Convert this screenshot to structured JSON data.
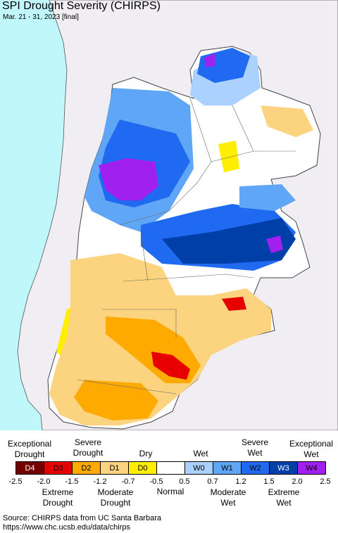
{
  "title": "SPI Drought Severity (CHIRPS)",
  "subtitle": "Mar. 21 - 31, 2023 [final]",
  "colors": {
    "ocean": "#bff7fb",
    "neighbor": "#f0eef2",
    "border": "#555555",
    "normal": "#ffffff",
    "D0": "#ffee00",
    "D1": "#fcd37f",
    "D2": "#ffaa00",
    "D3": "#e60000",
    "D4": "#730000",
    "W0": "#aad1ff",
    "W1": "#5fa6f6",
    "W2": "#1f6af0",
    "W3": "#003ea8",
    "W4": "#a020f0"
  },
  "legend": {
    "top_labels": {
      "exceptional_drought": "Exceptional\nDrought",
      "severe_drought": "Severe\nDrought",
      "dry": "Dry",
      "wet": "Wet",
      "severe_wet": "Severe\nWet",
      "exceptional_wet": "Exceptional\nWet"
    },
    "bottom_labels": {
      "extreme_drought": "Extreme\nDrought",
      "moderate_drought": "Moderate\nDrought",
      "normal": "Normal",
      "moderate_wet": "Moderate\nWet",
      "extreme_wet": "Extreme\nWet"
    },
    "categories": [
      {
        "code": "D4",
        "color": "#730000"
      },
      {
        "code": "D3",
        "color": "#e60000"
      },
      {
        "code": "D2",
        "color": "#ffaa00"
      },
      {
        "code": "D1",
        "color": "#fcd37f"
      },
      {
        "code": "D0",
        "color": "#ffee00"
      },
      {
        "code": "",
        "color": "#ffffff"
      },
      {
        "code": "W0",
        "color": "#aad1ff"
      },
      {
        "code": "W1",
        "color": "#5fa6f6"
      },
      {
        "code": "W2",
        "color": "#1f6af0"
      },
      {
        "code": "W3",
        "color": "#003ea8"
      },
      {
        "code": "W4",
        "color": "#a020f0"
      }
    ],
    "ticks": [
      "-2.5",
      "-2.0",
      "-1.5",
      "-1.2",
      "-0.7",
      "-0.5",
      "0.5",
      "0.7",
      "1.2",
      "1.5",
      "2.0",
      "2.5"
    ]
  },
  "source_line1": "Source: CHIRPS data from UC Santa Barbara",
  "source_line2": "https://www.chc.ucsb.edu/data/chirps"
}
